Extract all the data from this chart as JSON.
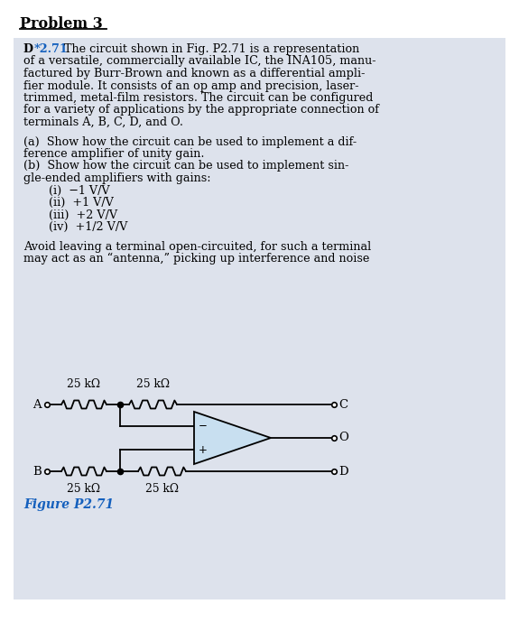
{
  "title": "Problem 3",
  "bg_color": "#ffffff",
  "panel_bg": "#dde2ec",
  "problem_line1_D": "D ",
  "problem_line1_num": "*2.71",
  "problem_line1_rest": " The circuit shown in Fig. P2.71 is a representation",
  "problem_lines": [
    "of a versatile, commercially available IC, the INA105, manu-",
    "factured by Burr-Brown and known as a differential ampli-",
    "fier module. It consists of an op amp and precision, laser-",
    "trimmed, metal-film resistors. The circuit can be configured",
    "for a variety of applications by the appropriate connection of",
    "terminals A, B, C, D, and O."
  ],
  "part_a_lines": [
    "(a)  Show how the circuit can be used to implement a dif-",
    "ference amplifier of unity gain."
  ],
  "part_b_lines": [
    "(b)  Show how the circuit can be used to implement sin-",
    "gle-ended amplifiers with gains:"
  ],
  "gains": [
    "(i)  −1 V/V",
    "(ii)  +1 V/V",
    "(iii)  +2 V/V",
    "(iv)  +1/2 V/V"
  ],
  "avoid_lines": [
    "Avoid leaving a terminal open-circuited, for such a terminal",
    "may act as an “antenna,” picking up interference and noise"
  ],
  "figure_label": "Figure P2.71",
  "res_tl": "25 kΩ",
  "res_tr": "25 kΩ",
  "res_bl": "25 kΩ",
  "res_br": "25 kΩ",
  "label_A": "A",
  "label_B": "B",
  "label_C": "C",
  "label_D": "D",
  "label_O": "O",
  "opamp_fill": "#c8dff0",
  "figure_label_color": "#1560bd",
  "num_color": "#1560bd"
}
